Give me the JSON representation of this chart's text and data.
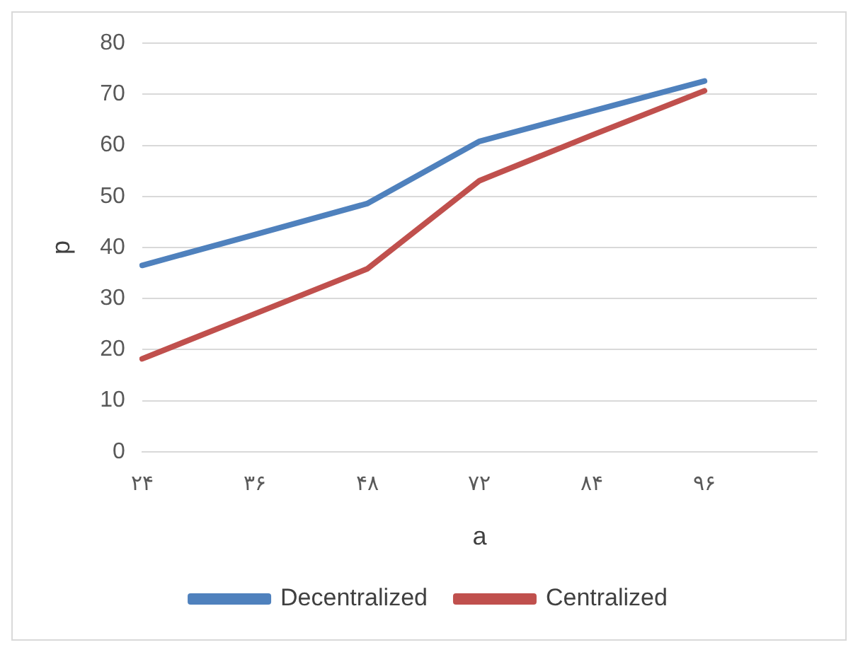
{
  "chart_data": {
    "type": "line",
    "xlabel": "a",
    "ylabel": "p",
    "categories": [
      "۲۴",
      "۳۶",
      "۴۸",
      "۷۲",
      "۸۴",
      "۹۶",
      null
    ],
    "series": [
      {
        "name": "Decentralized",
        "color": "#4f81bd",
        "values": [
          36.5,
          42.5,
          48.6,
          60.8,
          66.7,
          72.6,
          null
        ]
      },
      {
        "name": "Centralized",
        "color": "#c0504d",
        "values": [
          18.2,
          27,
          35.8,
          53.1,
          62,
          70.7,
          null
        ]
      }
    ],
    "ylim": [
      0,
      80
    ],
    "yticks": [
      0,
      10,
      20,
      30,
      40,
      50,
      60,
      70,
      80
    ],
    "grid": "y",
    "legend": "bottom",
    "marker": "none",
    "line_style": "solid"
  }
}
